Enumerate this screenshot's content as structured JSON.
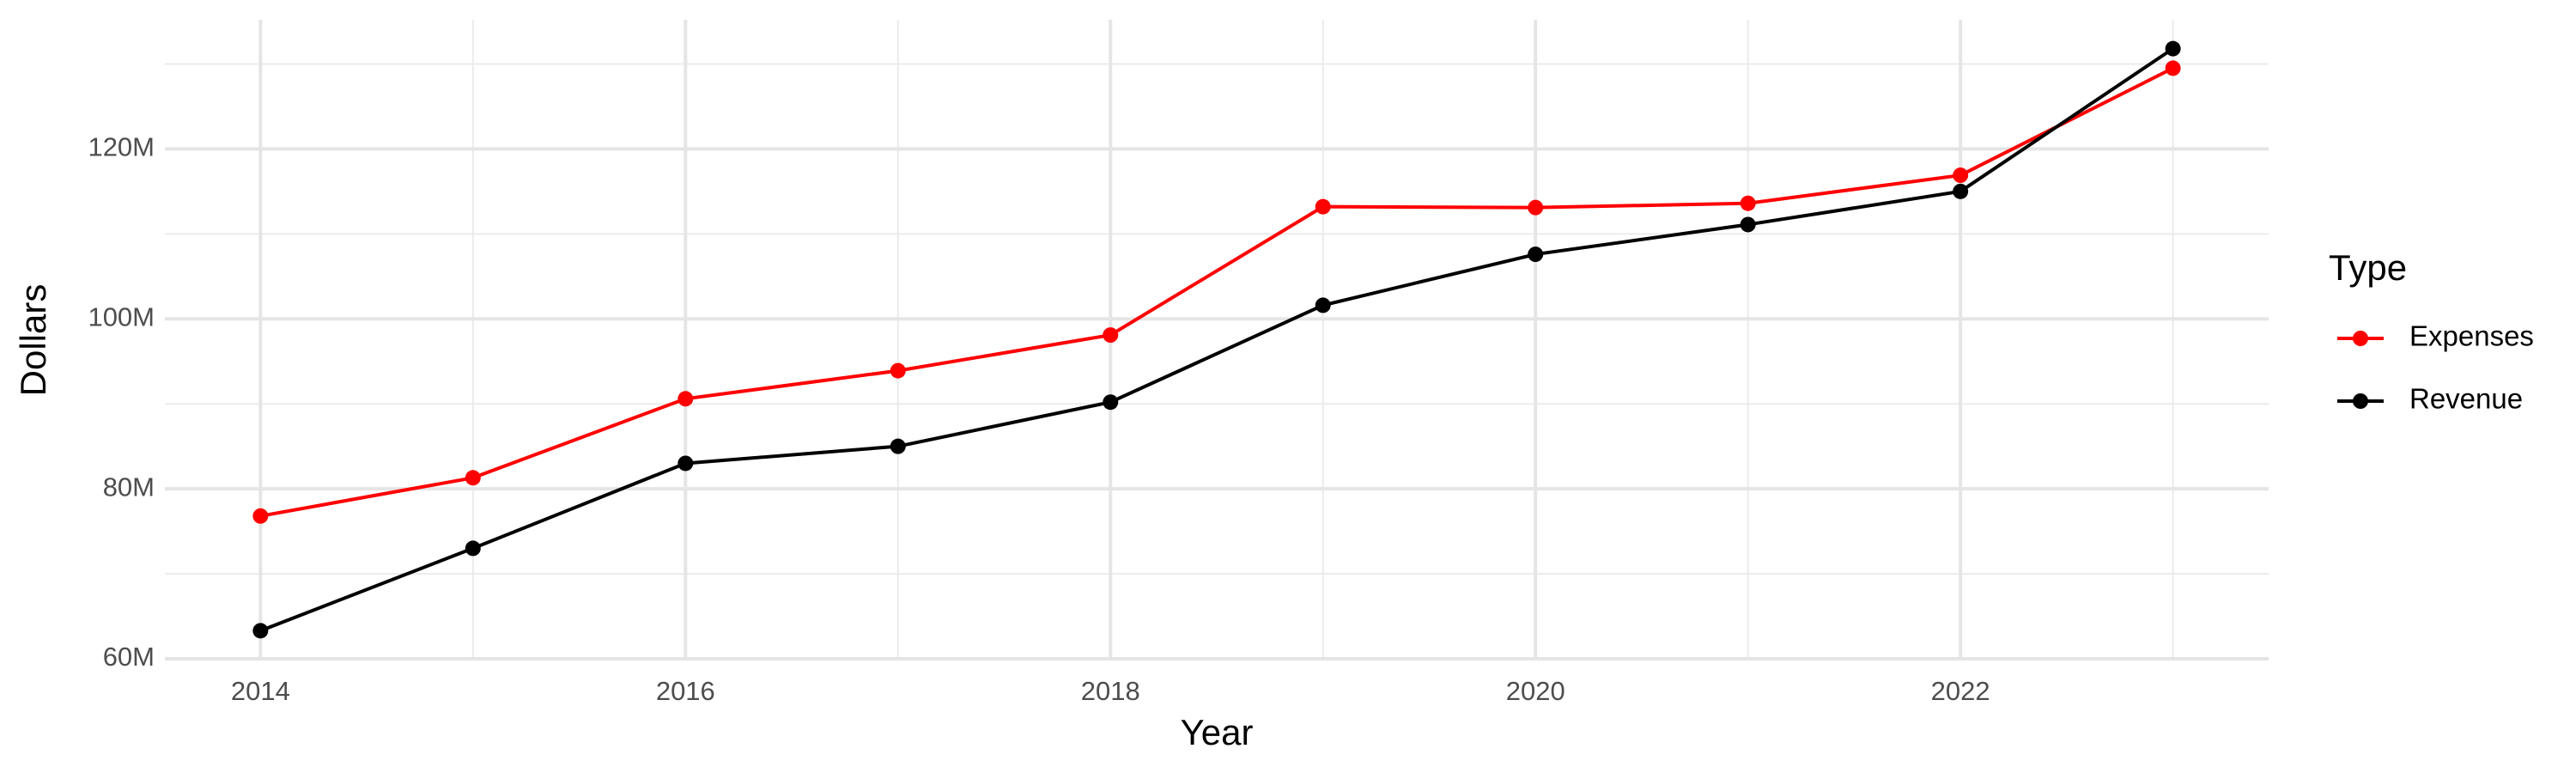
{
  "chart_data": {
    "type": "line",
    "x_label": "Year",
    "y_label": "Dollars",
    "legend_title": "Type",
    "x": [
      2014,
      2015,
      2016,
      2017,
      2018,
      2019,
      2020,
      2021,
      2022,
      2023
    ],
    "series": [
      {
        "name": "Expenses",
        "color": "#ff0000",
        "values": [
          76800000,
          81300000,
          90600000,
          93900000,
          98100000,
          113200000,
          113100000,
          113600000,
          116900000,
          129500000
        ]
      },
      {
        "name": "Revenue",
        "color": "#000000",
        "values": [
          63300000,
          73000000,
          83000000,
          85000000,
          90200000,
          101600000,
          107600000,
          111100000,
          115000000,
          131800000
        ]
      }
    ],
    "xlim": [
      2013.55,
      2023.45
    ],
    "xticks": [
      2014,
      2016,
      2018,
      2020,
      2022
    ],
    "ylim": [
      59800000,
      135200000
    ],
    "yticks": [
      {
        "value": 60000000,
        "label": "60M"
      },
      {
        "value": 80000000,
        "label": "80M"
      },
      {
        "value": 100000000,
        "label": "100M"
      },
      {
        "value": 120000000,
        "label": "120M"
      }
    ],
    "grid": true,
    "legend": "right"
  }
}
